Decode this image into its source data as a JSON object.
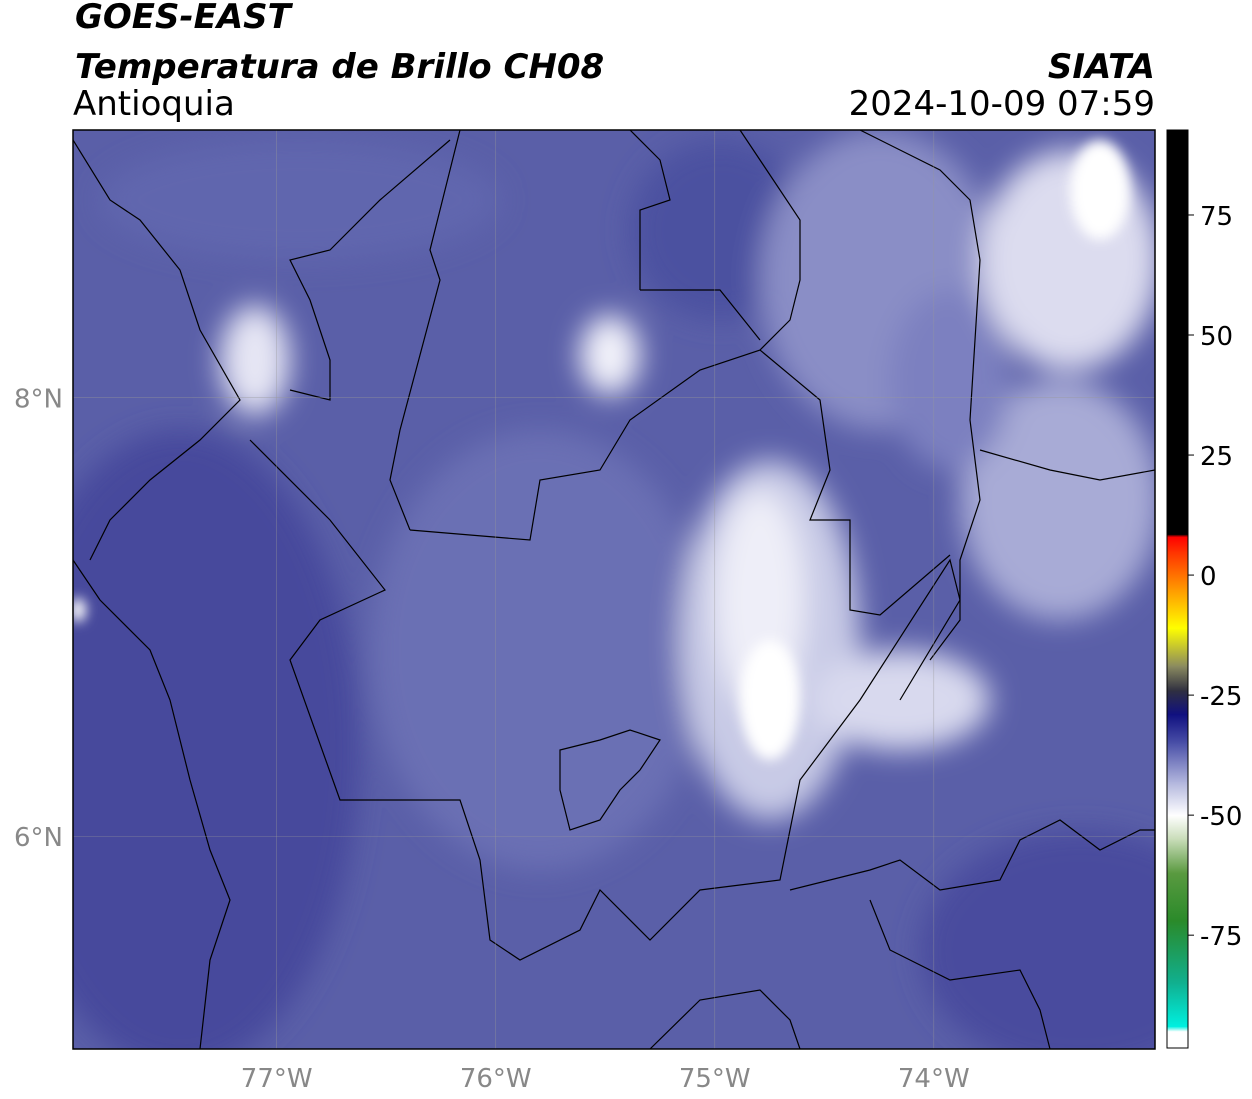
{
  "header": {
    "title": "GOES-EAST",
    "subtitle": "Temperatura de Brillo CH08",
    "region": "Antioquia",
    "source": "SIATA",
    "timestamp": "2024-10-09 07:59"
  },
  "map": {
    "xlim": [
      -77.93,
      -72.99
    ],
    "ylim": [
      5.03,
      9.22
    ],
    "xticks": [
      {
        "value": -77,
        "label": "77°W"
      },
      {
        "value": -76,
        "label": "76°W"
      },
      {
        "value": -75,
        "label": "75°W"
      },
      {
        "value": -74,
        "label": "74°W"
      }
    ],
    "yticks": [
      {
        "value": 8,
        "label": "8°N"
      },
      {
        "value": 6,
        "label": "6°N"
      }
    ],
    "grid": true
  },
  "colorbar": {
    "lim": [
      -98.5,
      92.7
    ],
    "ticks": [
      75,
      50,
      25,
      0,
      -25,
      -50,
      -75
    ],
    "colormap": [
      {
        "value": -98.5,
        "color": "#ffffff"
      },
      {
        "value": -95,
        "color": "#ffffff"
      },
      {
        "value": -94,
        "color": "#00f0e0"
      },
      {
        "value": -85,
        "color": "#10b090"
      },
      {
        "value": -72,
        "color": "#2a8a2a"
      },
      {
        "value": -62,
        "color": "#5a9a40"
      },
      {
        "value": -55,
        "color": "#c8dcb8"
      },
      {
        "value": -50,
        "color": "#ffffff"
      },
      {
        "value": -43,
        "color": "#b0b4dc"
      },
      {
        "value": -35,
        "color": "#4a50a8"
      },
      {
        "value": -29,
        "color": "#101080"
      },
      {
        "value": -24,
        "color": "#303040"
      },
      {
        "value": -19,
        "color": "#8a8a60"
      },
      {
        "value": -11,
        "color": "#ffff00"
      },
      {
        "value": -3,
        "color": "#ff9900"
      },
      {
        "value": 5,
        "color": "#ff3000"
      },
      {
        "value": 8,
        "color": "#ff0000"
      },
      {
        "value": 8.5,
        "color": "#000000"
      },
      {
        "value": 92.7,
        "color": "#000000"
      }
    ]
  }
}
